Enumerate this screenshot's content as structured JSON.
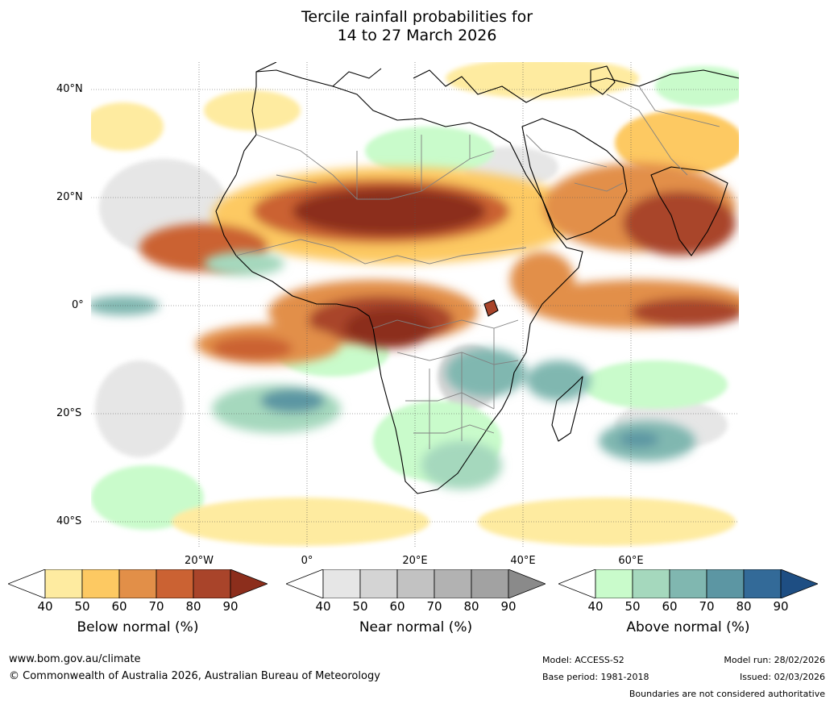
{
  "title_line1": "Tercile rainfall probabilities for",
  "title_line2": "14 to 27 March 2026",
  "map": {
    "lat_labels": [
      "40°N",
      "20°N",
      "0°",
      "20°S",
      "40°S"
    ],
    "lon_labels": [
      "20°W",
      "0°",
      "20°E",
      "40°E",
      "60°E"
    ],
    "ocean_color": "#ffffff",
    "coast_color": "#000000",
    "border_color": "#808080"
  },
  "colorbars": [
    {
      "title": "Below normal (%)",
      "ticks": [
        "40",
        "50",
        "60",
        "70",
        "80",
        "90"
      ],
      "colors": [
        "#ffffff",
        "#feeba0",
        "#fdc962",
        "#e28f48",
        "#cb6233",
        "#a9442a",
        "#8c2e1c"
      ]
    },
    {
      "title": "Near normal (%)",
      "ticks": [
        "40",
        "50",
        "60",
        "70",
        "80",
        "90"
      ],
      "colors": [
        "#ffffff",
        "#e6e6e6",
        "#d4d4d4",
        "#c2c2c2",
        "#b2b2b2",
        "#a2a2a2",
        "#8a8a8a"
      ]
    },
    {
      "title": "Above normal (%)",
      "ticks": [
        "40",
        "50",
        "60",
        "70",
        "80",
        "90"
      ],
      "colors": [
        "#ffffff",
        "#c9fbcb",
        "#a5d8bd",
        "#80b7b0",
        "#5c96a3",
        "#336a98",
        "#1e4e83"
      ]
    }
  ],
  "footer": {
    "website": "www.bom.gov.au/climate",
    "copyright": "© Commonwealth of Australia 2026, Australian Bureau of Meteorology",
    "model": "Model: ACCESS-S2",
    "base_period": "Base period: 1981-2018",
    "model_run": "Model run: 28/02/2026",
    "issued": "Issued: 02/03/2026",
    "disclaimer": "Boundaries are not considered authoritative"
  }
}
